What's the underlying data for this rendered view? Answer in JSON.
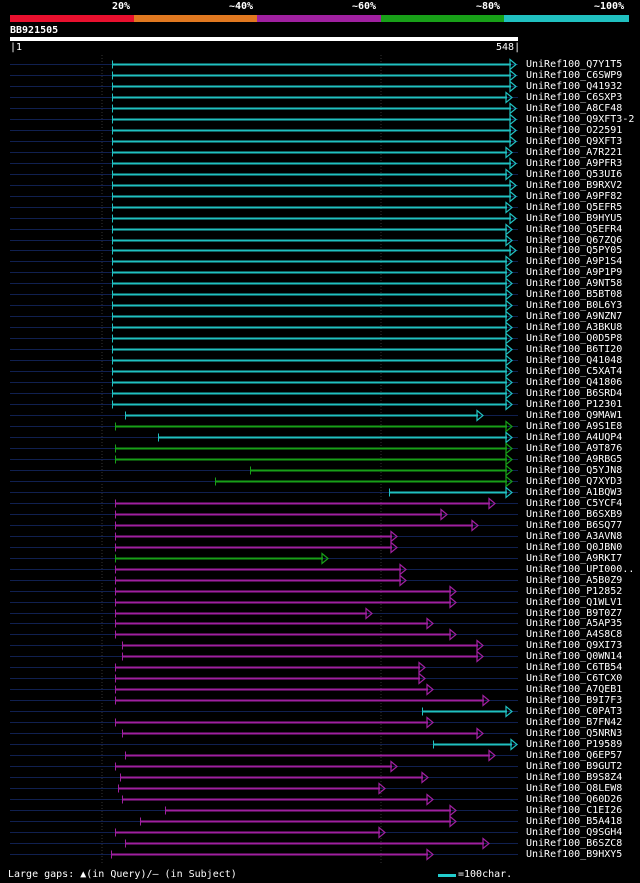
{
  "colors": {
    "seg20": "#e8102e",
    "seg40": "#e07820",
    "seg60": "#a020a0",
    "seg80": "#18a018",
    "seg100": "#20c0c0",
    "query": "#ffffff",
    "track": "#102050",
    "grid": "#333333"
  },
  "scale": {
    "labels": [
      "20%",
      "~40%",
      "~60%",
      "~80%",
      "~100%"
    ]
  },
  "query": {
    "id": "BB921505",
    "start": "1",
    "end": "548",
    "length": 548
  },
  "hits": [
    {
      "name": "UniRef100_Q7Y1T5",
      "start": 113,
      "end": 515,
      "color": "seg100"
    },
    {
      "name": "UniRef100_C6SWP9",
      "start": 113,
      "end": 515,
      "color": "seg100"
    },
    {
      "name": "UniRef100_Q41932",
      "start": 113,
      "end": 515,
      "color": "seg100"
    },
    {
      "name": "UniRef100_C6SXP3",
      "start": 113,
      "end": 511,
      "color": "seg100"
    },
    {
      "name": "UniRef100_A8CF48",
      "start": 113,
      "end": 515,
      "color": "seg100"
    },
    {
      "name": "UniRef100_Q9XFT3-2",
      "start": 113,
      "end": 515,
      "color": "seg100"
    },
    {
      "name": "UniRef100_O22591",
      "start": 113,
      "end": 515,
      "color": "seg100"
    },
    {
      "name": "UniRef100_Q9XFT3",
      "start": 113,
      "end": 515,
      "color": "seg100"
    },
    {
      "name": "UniRef100_A7R221",
      "start": 113,
      "end": 511,
      "color": "seg100"
    },
    {
      "name": "UniRef100_A9PFR3",
      "start": 113,
      "end": 515,
      "color": "seg100"
    },
    {
      "name": "UniRef100_Q53UI6",
      "start": 113,
      "end": 511,
      "color": "seg100"
    },
    {
      "name": "UniRef100_B9RXV2",
      "start": 113,
      "end": 515,
      "color": "seg100"
    },
    {
      "name": "UniRef100_A9PF82",
      "start": 113,
      "end": 515,
      "color": "seg100"
    },
    {
      "name": "UniRef100_Q5EFR5",
      "start": 113,
      "end": 511,
      "color": "seg100"
    },
    {
      "name": "UniRef100_B9HYU5",
      "start": 113,
      "end": 515,
      "color": "seg100"
    },
    {
      "name": "UniRef100_Q5EFR4",
      "start": 113,
      "end": 511,
      "color": "seg100"
    },
    {
      "name": "UniRef100_Q67ZQ6",
      "start": 113,
      "end": 511,
      "color": "seg100"
    },
    {
      "name": "UniRef100_Q5PY05",
      "start": 113,
      "end": 515,
      "color": "seg100"
    },
    {
      "name": "UniRef100_A9P1S4",
      "start": 113,
      "end": 511,
      "color": "seg100"
    },
    {
      "name": "UniRef100_A9P1P9",
      "start": 113,
      "end": 511,
      "color": "seg100"
    },
    {
      "name": "UniRef100_A9NT58",
      "start": 113,
      "end": 511,
      "color": "seg100"
    },
    {
      "name": "UniRef100_B5BT08",
      "start": 113,
      "end": 511,
      "color": "seg100"
    },
    {
      "name": "UniRef100_B0L6Y3",
      "start": 113,
      "end": 511,
      "color": "seg100"
    },
    {
      "name": "UniRef100_A9NZN7",
      "start": 113,
      "end": 511,
      "color": "seg100"
    },
    {
      "name": "UniRef100_A3BKU8",
      "start": 113,
      "end": 511,
      "color": "seg100"
    },
    {
      "name": "UniRef100_Q0D5P8",
      "start": 113,
      "end": 511,
      "color": "seg100"
    },
    {
      "name": "UniRef100_B6TI20",
      "start": 113,
      "end": 511,
      "color": "seg100"
    },
    {
      "name": "UniRef100_Q41048",
      "start": 113,
      "end": 511,
      "color": "seg100"
    },
    {
      "name": "UniRef100_C5XAT4",
      "start": 113,
      "end": 511,
      "color": "seg100"
    },
    {
      "name": "UniRef100_Q41806",
      "start": 113,
      "end": 511,
      "color": "seg100"
    },
    {
      "name": "UniRef100_B6SRD4",
      "start": 113,
      "end": 511,
      "color": "seg100"
    },
    {
      "name": "UniRef100_P12301",
      "start": 113,
      "end": 511,
      "color": "seg100"
    },
    {
      "name": "UniRef100_Q9MAW1",
      "start": 126,
      "end": 482,
      "color": "seg100"
    },
    {
      "name": "UniRef100_A9S1E8",
      "start": 116,
      "end": 511,
      "color": "seg80"
    },
    {
      "name": "UniRef100_A4UQP4",
      "start": 159,
      "end": 511,
      "color": "seg100"
    },
    {
      "name": "UniRef100_A9T876",
      "start": 116,
      "end": 511,
      "color": "seg80"
    },
    {
      "name": "UniRef100_A9RBG5",
      "start": 116,
      "end": 511,
      "color": "seg80"
    },
    {
      "name": "UniRef100_Q5YJN8",
      "start": 251,
      "end": 511,
      "color": "seg80"
    },
    {
      "name": "UniRef100_Q7XYD3",
      "start": 216,
      "end": 511,
      "color": "seg80"
    },
    {
      "name": "UniRef100_A1BQW3",
      "start": 390,
      "end": 511,
      "color": "seg100"
    },
    {
      "name": "UniRef100_C5YCF4",
      "start": 116,
      "end": 494,
      "color": "seg60"
    },
    {
      "name": "UniRef100_B6SXB9",
      "start": 116,
      "end": 446,
      "color": "seg60"
    },
    {
      "name": "UniRef100_B6SQ77",
      "start": 116,
      "end": 477,
      "color": "seg60"
    },
    {
      "name": "UniRef100_A3AVN8",
      "start": 116,
      "end": 396,
      "color": "seg60"
    },
    {
      "name": "UniRef100_Q0JBN0",
      "start": 116,
      "end": 396,
      "color": "seg60"
    },
    {
      "name": "UniRef100_A9RKI7",
      "start": 116,
      "end": 327,
      "color": "seg80"
    },
    {
      "name": "UniRef100_UPI000..",
      "start": 116,
      "end": 405,
      "color": "seg60"
    },
    {
      "name": "UniRef100_A5B0Z9",
      "start": 116,
      "end": 405,
      "color": "seg60"
    },
    {
      "name": "UniRef100_P12852",
      "start": 116,
      "end": 455,
      "color": "seg60"
    },
    {
      "name": "UniRef100_Q1WLV1",
      "start": 116,
      "end": 455,
      "color": "seg60"
    },
    {
      "name": "UniRef100_B9T0Z7",
      "start": 116,
      "end": 371,
      "color": "seg60"
    },
    {
      "name": "UniRef100_A5AP35",
      "start": 116,
      "end": 432,
      "color": "seg60"
    },
    {
      "name": "UniRef100_A4S8C8",
      "start": 116,
      "end": 455,
      "color": "seg60"
    },
    {
      "name": "UniRef100_Q9XI73",
      "start": 123,
      "end": 482,
      "color": "seg60"
    },
    {
      "name": "UniRef100_Q0WN14",
      "start": 123,
      "end": 482,
      "color": "seg60"
    },
    {
      "name": "UniRef100_C6TB54",
      "start": 116,
      "end": 424,
      "color": "seg60"
    },
    {
      "name": "UniRef100_C6TCX0",
      "start": 116,
      "end": 424,
      "color": "seg60"
    },
    {
      "name": "UniRef100_A7QEB1",
      "start": 116,
      "end": 432,
      "color": "seg60"
    },
    {
      "name": "UniRef100_B9I7F3",
      "start": 116,
      "end": 488,
      "color": "seg60"
    },
    {
      "name": "UniRef100_C0PAT3",
      "start": 423,
      "end": 511,
      "color": "seg100"
    },
    {
      "name": "UniRef100_B7FN42",
      "start": 116,
      "end": 432,
      "color": "seg60"
    },
    {
      "name": "UniRef100_Q5NRN3",
      "start": 123,
      "end": 482,
      "color": "seg60"
    },
    {
      "name": "UniRef100_P19589",
      "start": 434,
      "end": 516,
      "color": "seg100"
    },
    {
      "name": "UniRef100_Q6EP57",
      "start": 126,
      "end": 494,
      "color": "seg60"
    },
    {
      "name": "UniRef100_B9GUT2",
      "start": 116,
      "end": 396,
      "color": "seg60"
    },
    {
      "name": "UniRef100_B9S8Z4",
      "start": 121,
      "end": 427,
      "color": "seg60"
    },
    {
      "name": "UniRef100_Q8LEW8",
      "start": 119,
      "end": 384,
      "color": "seg60"
    },
    {
      "name": "UniRef100_Q60D26",
      "start": 123,
      "end": 432,
      "color": "seg60"
    },
    {
      "name": "UniRef100_C1EI26",
      "start": 166,
      "end": 455,
      "color": "seg60"
    },
    {
      "name": "UniRef100_B5A418",
      "start": 141,
      "end": 455,
      "color": "seg60"
    },
    {
      "name": "UniRef100_Q9SGH4",
      "start": 116,
      "end": 384,
      "color": "seg60"
    },
    {
      "name": "UniRef100_B6SZC8",
      "start": 126,
      "end": 488,
      "color": "seg60"
    },
    {
      "name": "UniRef100_B9HXY5",
      "start": 112,
      "end": 432,
      "color": "seg60"
    }
  ],
  "legend": {
    "gaps_text": "Large gaps: ▲(in Query)/– (in Subject)",
    "bar_text": "=100char."
  }
}
